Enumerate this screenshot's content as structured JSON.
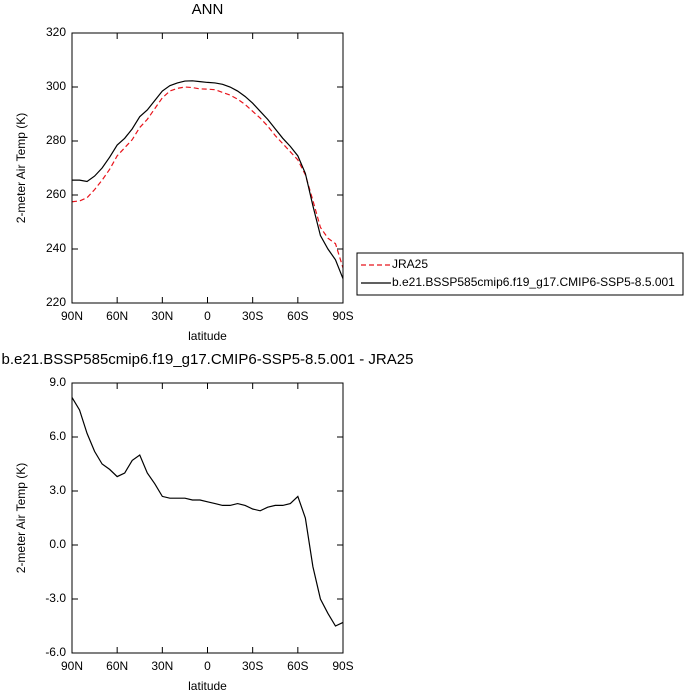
{
  "chart_data": [
    {
      "type": "line",
      "title": "ANN",
      "xlabel": "latitude",
      "ylabel": "2-meter Air Temp (K)",
      "x": [
        90,
        85,
        80,
        75,
        70,
        65,
        60,
        55,
        50,
        45,
        40,
        35,
        30,
        25,
        20,
        15,
        10,
        5,
        0,
        -5,
        -10,
        -15,
        -20,
        -25,
        -30,
        -35,
        -40,
        -45,
        -50,
        -55,
        -60,
        -65,
        -70,
        -75,
        -80,
        -85,
        -90
      ],
      "series": [
        {
          "name": "JRA25",
          "color": "#e8141c",
          "dash": "dashed",
          "values": [
            257.5,
            257.8,
            259,
            262,
            265.5,
            269.5,
            274.5,
            277.5,
            280.5,
            285,
            288,
            292,
            296,
            298.5,
            299.5,
            300,
            299.8,
            299.3,
            299.2,
            299,
            298,
            297,
            295.5,
            293.5,
            291,
            288.5,
            285.5,
            282,
            279,
            276,
            273,
            267.5,
            258,
            248,
            244,
            242,
            233
          ]
        },
        {
          "name": "b.e21.BSSP585cmip6.f19_g17.CMIP6-SSP5-8.5.001",
          "color": "#000000",
          "dash": "solid",
          "values": [
            265.5,
            265.5,
            265,
            267,
            270,
            274,
            278.5,
            281,
            284.5,
            289,
            291.5,
            295,
            298.5,
            300.5,
            301.5,
            302.2,
            302.3,
            302,
            301.7,
            301.5,
            301,
            300,
            298.5,
            296.5,
            294,
            291,
            288,
            284.5,
            281,
            278,
            274.5,
            268,
            256,
            245,
            240,
            236,
            229
          ]
        }
      ],
      "xlim": [
        90,
        -90
      ],
      "xticks": [
        {
          "value": 90,
          "label": "90N"
        },
        {
          "value": 60,
          "label": "60N"
        },
        {
          "value": 30,
          "label": "30N"
        },
        0,
        {
          "value": -30,
          "label": "30S"
        },
        {
          "value": -60,
          "label": "60S"
        },
        {
          "value": -90,
          "label": "90S"
        }
      ],
      "ylim": [
        220,
        320
      ],
      "yticks": [
        220,
        240,
        260,
        280,
        300,
        320
      ],
      "legend": "right"
    },
    {
      "type": "line",
      "title": "b.e21.BSSP585cmip6.f19_g17.CMIP6-SSP5-8.5.001 - JRA25",
      "xlabel": "latitude",
      "ylabel": "2-meter Air Temp (K)",
      "x": [
        90,
        85,
        80,
        75,
        70,
        65,
        60,
        55,
        50,
        45,
        40,
        35,
        30,
        25,
        20,
        15,
        10,
        5,
        0,
        -5,
        -10,
        -15,
        -20,
        -25,
        -30,
        -35,
        -40,
        -45,
        -50,
        -55,
        -60,
        -65,
        -70,
        -75,
        -80,
        -85,
        -90
      ],
      "color": "#000000",
      "values": [
        8.2,
        7.5,
        6.2,
        5.2,
        4.5,
        4.2,
        3.8,
        4.0,
        4.7,
        5.0,
        4.0,
        3.4,
        2.7,
        2.6,
        2.6,
        2.6,
        2.5,
        2.5,
        2.4,
        2.3,
        2.2,
        2.2,
        2.3,
        2.2,
        2.0,
        1.9,
        2.1,
        2.2,
        2.2,
        2.3,
        2.7,
        1.5,
        -1.2,
        -3.0,
        -3.8,
        -4.5,
        -4.3
      ],
      "xlim": [
        90,
        -90
      ],
      "xticks": [
        {
          "value": 90,
          "label": "90N"
        },
        {
          "value": 60,
          "label": "60N"
        },
        {
          "value": 30,
          "label": "30N"
        },
        0,
        {
          "value": -30,
          "label": "30S"
        },
        {
          "value": -60,
          "label": "60S"
        },
        {
          "value": -90,
          "label": "90S"
        }
      ],
      "ylim": [
        -6,
        9
      ],
      "yticks": [
        {
          "value": -6,
          "label": "-6.0"
        },
        {
          "value": -3,
          "label": "-3.0"
        },
        {
          "value": 0,
          "label": "0.0"
        },
        {
          "value": 3,
          "label": "3.0"
        },
        {
          "value": 6,
          "label": "6.0"
        },
        {
          "value": 9,
          "label": "9.0"
        }
      ]
    }
  ]
}
